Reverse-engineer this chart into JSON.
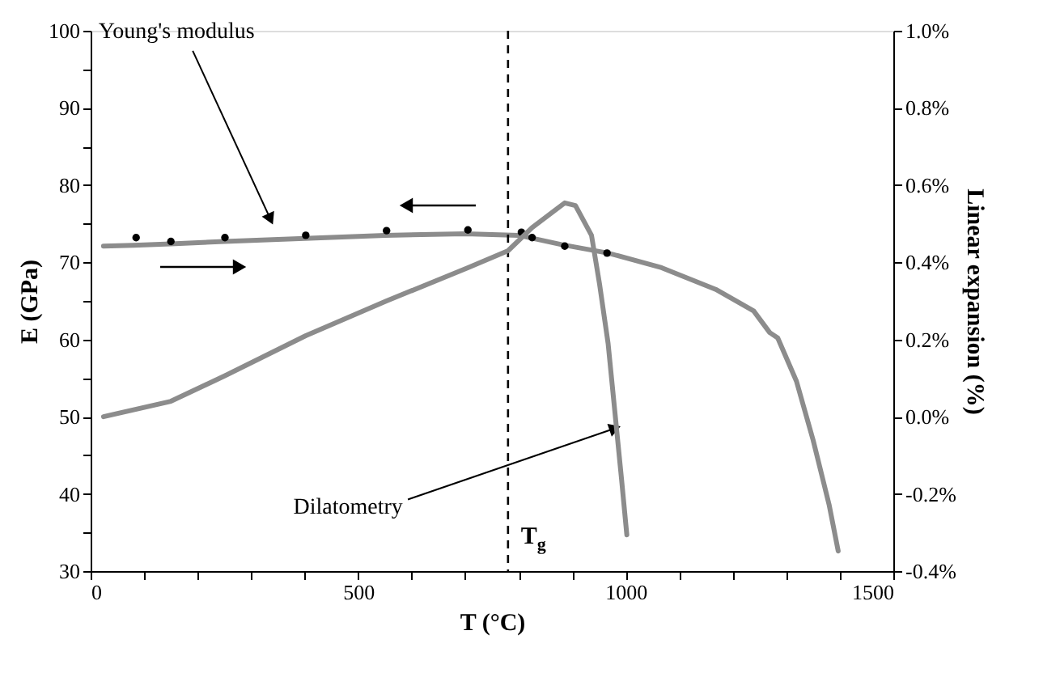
{
  "chart_data": {
    "type": "line",
    "xlabel": "T (°C)",
    "ylabel": "E (GPa)",
    "y2label": "Linear expansion (%)",
    "xlim": [
      0,
      1500
    ],
    "xticks": [
      0,
      {
        "value": 100,
        "label": null
      },
      {
        "value": 200,
        "label": null
      },
      {
        "value": 300,
        "label": null
      },
      {
        "value": 400,
        "label": null
      },
      500,
      {
        "value": 600,
        "label": null
      },
      {
        "value": 700,
        "label": null
      },
      {
        "value": 800,
        "label": null
      },
      {
        "value": 900,
        "label": null
      },
      1000,
      {
        "value": 1100,
        "label": null
      },
      {
        "value": 1200,
        "label": null
      },
      {
        "value": 1300,
        "label": null
      },
      {
        "value": 1400,
        "label": null
      },
      1500
    ],
    "ylim": [
      30,
      100
    ],
    "yticks": [
      30,
      {
        "value": 35,
        "label": null
      },
      40,
      {
        "value": 45,
        "label": null
      },
      50,
      {
        "value": 55,
        "label": null
      },
      60,
      {
        "value": 65,
        "label": null
      },
      70,
      {
        "value": 75,
        "label": null
      },
      80,
      {
        "value": 85,
        "label": null
      },
      90,
      {
        "value": 95,
        "label": null
      },
      100
    ],
    "y2lim": [
      -0.4,
      1.0
    ],
    "y2ticks": [
      {
        "value": -0.4,
        "label": "-0.4%"
      },
      {
        "value": -0.2,
        "label": "-0.2%"
      },
      {
        "value": 0.0,
        "label": "0.0%"
      },
      {
        "value": 0.2,
        "label": "0.2%"
      },
      {
        "value": 0.4,
        "label": "0.4%"
      },
      {
        "value": 0.6,
        "label": "0.6%"
      },
      {
        "value": 0.8,
        "label": "0.8%"
      },
      {
        "value": 1.0,
        "label": "1.0%"
      }
    ],
    "series": [
      {
        "color": "#8c8c8c",
        "x": [
          24,
          80,
          150,
          250,
          400,
          550,
          700,
          800,
          880,
          967,
          1067,
          1168,
          1239,
          1269,
          1284,
          1319,
          1350,
          1380,
          1397
        ],
        "values": [
          72.1,
          72.2,
          72.4,
          72.7,
          73.1,
          73.5,
          73.7,
          73.5,
          72.3,
          71.2,
          69.3,
          66.5,
          63.7,
          60.9,
          60.2,
          54.6,
          47.0,
          38.6,
          32.6
        ]
      },
      {
        "type": "scatter",
        "marker": "circle",
        "color": "#000000",
        "x": [
          85,
          150,
          251,
          402,
          553,
          705,
          805,
          825,
          886,
          965
        ],
        "values": [
          73.2,
          72.7,
          73.2,
          73.5,
          74.1,
          74.2,
          73.9,
          73.2,
          72.1,
          71.2
        ]
      },
      {
        "axis": "y2",
        "color": "#8c8c8c",
        "x": [
          24,
          150,
          251,
          402,
          553,
          705,
          780,
          825,
          886,
          906,
          936,
          951,
          967,
          982,
          992,
          1002
        ],
        "values": [
          0.0,
          0.04,
          0.106,
          0.21,
          0.3,
          0.386,
          0.43,
          0.49,
          0.554,
          0.547,
          0.47,
          0.344,
          0.19,
          -0.02,
          -0.16,
          -0.306
        ]
      }
    ],
    "ref_lines": [
      {
        "axis": "x",
        "value": 780,
        "label": "T$_{g}$",
        "color": "#000000",
        "line_style": "dashed"
      }
    ],
    "annotations": [
      {
        "text": "Young's modulus",
        "x": 336,
        "y": 75.6
      },
      {
        "text": "Dilatometry",
        "x": 980,
        "y": 48.5
      }
    ],
    "grid": false
  }
}
